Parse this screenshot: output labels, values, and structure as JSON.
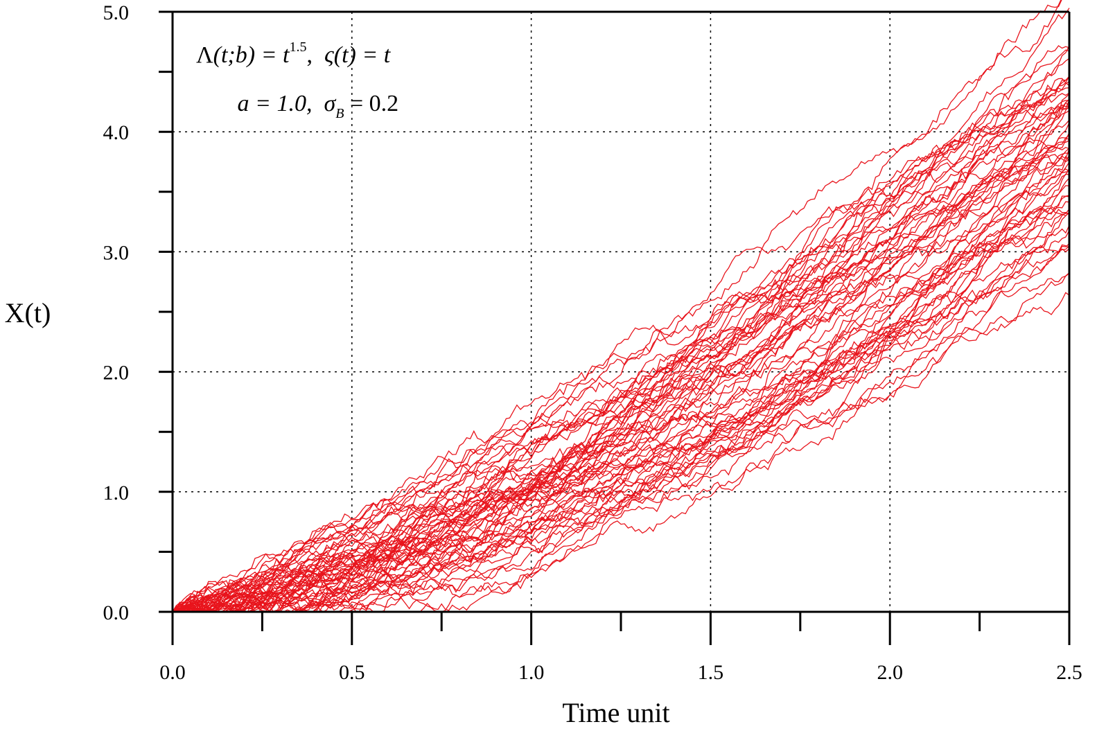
{
  "chart_data": {
    "type": "line",
    "xlabel": "Time unit",
    "ylabel": "X(t)",
    "xlim": [
      0.0,
      2.5
    ],
    "ylim": [
      0.0,
      5.0
    ],
    "xticks": [
      "0.0",
      "0.5",
      "1.0",
      "1.5",
      "2.0",
      "2.5"
    ],
    "yticks": [
      "0.0",
      "1.0",
      "2.0",
      "3.0",
      "4.0",
      "5.0"
    ],
    "grid": true,
    "line_color": "#e8141c",
    "annotations": {
      "line1": {
        "lambda": "Λ",
        "args": "(t;b) = t",
        "exponent": "1.5",
        "sep": ",  ",
        "zeta": "ς(t) = t"
      },
      "line2": {
        "a": "a = 1.0,  ",
        "sigma": "σ",
        "sigma_sub": "B",
        "sigma_val": " = 0.2"
      }
    },
    "series_count": 60,
    "mean_path": {
      "x": [
        0.0,
        0.25,
        0.5,
        0.75,
        1.0,
        1.25,
        1.5,
        1.75,
        2.0,
        2.25,
        2.5
      ],
      "y": [
        0.0,
        0.13,
        0.35,
        0.65,
        1.0,
        1.4,
        1.84,
        2.32,
        2.83,
        3.37,
        3.95
      ]
    }
  }
}
